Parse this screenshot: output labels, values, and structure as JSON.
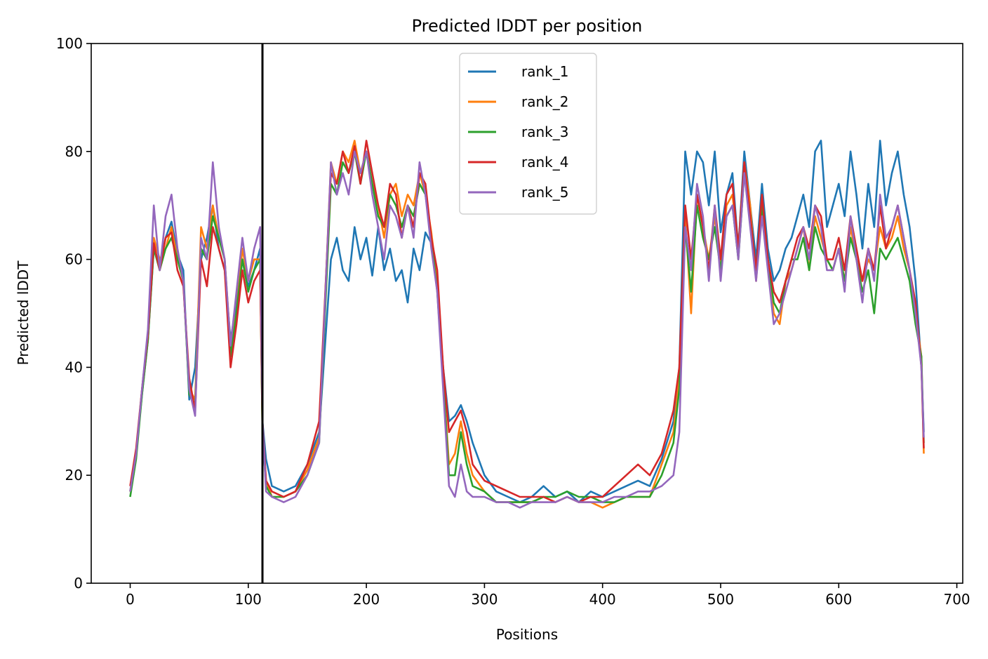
{
  "chart_data": {
    "type": "line",
    "title": "Predicted lDDT per position",
    "xlabel": "Positions",
    "ylabel": "Predicted lDDT",
    "xlim": [
      -33,
      705
    ],
    "ylim": [
      0,
      100
    ],
    "xticks": [
      0,
      100,
      200,
      300,
      400,
      500,
      600,
      700
    ],
    "yticks": [
      0,
      20,
      40,
      60,
      80,
      100
    ],
    "grid": false,
    "legend": "upper center",
    "vline_x": 112,
    "vline_color": "#000000",
    "series": [
      {
        "name": "rank_1",
        "color": "#1f77b4",
        "x": [
          0,
          5,
          10,
          15,
          20,
          25,
          30,
          35,
          40,
          45,
          50,
          55,
          60,
          65,
          70,
          75,
          80,
          85,
          90,
          95,
          100,
          105,
          110,
          112,
          115,
          120,
          130,
          140,
          150,
          160,
          170,
          175,
          180,
          185,
          190,
          195,
          200,
          205,
          210,
          215,
          220,
          225,
          230,
          235,
          240,
          245,
          250,
          255,
          260,
          265,
          270,
          275,
          280,
          285,
          290,
          300,
          310,
          320,
          330,
          340,
          350,
          360,
          370,
          380,
          390,
          400,
          410,
          420,
          430,
          440,
          450,
          460,
          465,
          470,
          475,
          480,
          485,
          490,
          495,
          500,
          505,
          510,
          515,
          520,
          525,
          530,
          535,
          540,
          545,
          550,
          555,
          560,
          565,
          570,
          575,
          580,
          585,
          590,
          595,
          600,
          605,
          610,
          615,
          620,
          625,
          630,
          635,
          640,
          645,
          650,
          655,
          660,
          665,
          670,
          672
        ],
        "y": [
          17,
          24,
          35,
          45,
          62,
          59,
          64,
          67,
          61,
          58,
          34,
          40,
          60,
          64,
          70,
          62,
          58,
          45,
          52,
          60,
          55,
          58,
          62,
          30,
          23,
          18,
          17,
          18,
          22,
          28,
          60,
          64,
          58,
          56,
          66,
          60,
          64,
          57,
          66,
          58,
          62,
          56,
          58,
          52,
          62,
          58,
          65,
          63,
          55,
          40,
          30,
          31,
          33,
          30,
          26,
          20,
          17,
          16,
          15,
          16,
          18,
          16,
          17,
          15,
          17,
          16,
          17,
          18,
          19,
          18,
          23,
          30,
          40,
          80,
          72,
          80,
          78,
          70,
          80,
          65,
          72,
          76,
          62,
          80,
          70,
          60,
          74,
          62,
          56,
          58,
          62,
          64,
          68,
          72,
          66,
          80,
          82,
          66,
          70,
          74,
          68,
          80,
          72,
          62,
          74,
          66,
          82,
          70,
          76,
          80,
          72,
          66,
          56,
          40,
          28
        ]
      },
      {
        "name": "rank_2",
        "color": "#ff7f0e",
        "x": [
          0,
          5,
          10,
          15,
          20,
          25,
          30,
          35,
          40,
          45,
          50,
          55,
          60,
          65,
          70,
          75,
          80,
          85,
          90,
          95,
          100,
          105,
          110,
          112,
          115,
          120,
          130,
          140,
          150,
          160,
          170,
          175,
          180,
          185,
          190,
          195,
          200,
          205,
          210,
          215,
          220,
          225,
          230,
          235,
          240,
          245,
          250,
          255,
          260,
          265,
          270,
          275,
          280,
          285,
          290,
          300,
          310,
          320,
          330,
          340,
          350,
          360,
          370,
          380,
          390,
          400,
          410,
          420,
          430,
          440,
          450,
          460,
          465,
          470,
          475,
          480,
          485,
          490,
          495,
          500,
          505,
          510,
          515,
          520,
          525,
          530,
          535,
          540,
          545,
          550,
          555,
          560,
          565,
          570,
          575,
          580,
          585,
          590,
          595,
          600,
          605,
          610,
          615,
          620,
          625,
          630,
          635,
          640,
          645,
          650,
          655,
          660,
          665,
          670,
          672
        ],
        "y": [
          17,
          24,
          36,
          46,
          64,
          60,
          62,
          66,
          60,
          56,
          36,
          34,
          66,
          62,
          70,
          64,
          60,
          44,
          50,
          62,
          56,
          60,
          60,
          28,
          19,
          16,
          16,
          17,
          21,
          27,
          78,
          74,
          80,
          78,
          82,
          76,
          80,
          74,
          70,
          64,
          72,
          74,
          68,
          72,
          70,
          76,
          72,
          65,
          56,
          38,
          22,
          24,
          30,
          24,
          20,
          17,
          15,
          15,
          15,
          15,
          16,
          15,
          16,
          15,
          15,
          14,
          15,
          16,
          16,
          16,
          22,
          28,
          38,
          68,
          50,
          72,
          66,
          60,
          68,
          58,
          70,
          72,
          62,
          78,
          70,
          56,
          70,
          60,
          50,
          48,
          56,
          58,
          62,
          66,
          58,
          68,
          64,
          60,
          58,
          62,
          56,
          66,
          60,
          56,
          60,
          58,
          66,
          62,
          64,
          68,
          62,
          58,
          50,
          42,
          24
        ]
      },
      {
        "name": "rank_3",
        "color": "#2ca02c",
        "x": [
          0,
          5,
          10,
          15,
          20,
          25,
          30,
          35,
          40,
          45,
          50,
          55,
          60,
          65,
          70,
          75,
          80,
          85,
          90,
          95,
          100,
          105,
          110,
          112,
          115,
          120,
          130,
          140,
          150,
          160,
          170,
          175,
          180,
          185,
          190,
          195,
          200,
          205,
          210,
          215,
          220,
          225,
          230,
          235,
          240,
          245,
          250,
          255,
          260,
          265,
          270,
          275,
          280,
          285,
          290,
          300,
          310,
          320,
          330,
          340,
          350,
          360,
          370,
          380,
          390,
          400,
          410,
          420,
          430,
          440,
          450,
          460,
          465,
          470,
          475,
          480,
          485,
          490,
          495,
          500,
          505,
          510,
          515,
          520,
          525,
          530,
          535,
          540,
          545,
          550,
          555,
          560,
          565,
          570,
          575,
          580,
          585,
          590,
          595,
          600,
          605,
          610,
          615,
          620,
          625,
          630,
          635,
          640,
          645,
          650,
          655,
          660,
          665,
          670,
          672
        ],
        "y": [
          16,
          23,
          35,
          45,
          62,
          58,
          62,
          64,
          60,
          56,
          35,
          33,
          62,
          60,
          68,
          64,
          60,
          42,
          50,
          60,
          54,
          58,
          60,
          28,
          18,
          16,
          16,
          17,
          20,
          26,
          74,
          72,
          78,
          76,
          80,
          74,
          80,
          74,
          68,
          66,
          72,
          70,
          66,
          70,
          68,
          74,
          72,
          64,
          54,
          38,
          20,
          20,
          28,
          22,
          18,
          17,
          15,
          15,
          15,
          15,
          16,
          16,
          17,
          16,
          16,
          15,
          15,
          16,
          16,
          16,
          20,
          26,
          36,
          66,
          54,
          70,
          64,
          60,
          66,
          58,
          68,
          70,
          60,
          76,
          68,
          58,
          70,
          60,
          52,
          50,
          56,
          60,
          60,
          64,
          58,
          66,
          62,
          60,
          58,
          62,
          56,
          64,
          60,
          54,
          58,
          50,
          62,
          60,
          62,
          64,
          60,
          56,
          48,
          42,
          26
        ]
      },
      {
        "name": "rank_4",
        "color": "#d62728",
        "x": [
          0,
          5,
          10,
          15,
          20,
          25,
          30,
          35,
          40,
          45,
          50,
          55,
          60,
          65,
          70,
          75,
          80,
          85,
          90,
          95,
          100,
          105,
          110,
          112,
          115,
          120,
          130,
          140,
          150,
          160,
          170,
          175,
          180,
          185,
          190,
          195,
          200,
          205,
          210,
          215,
          220,
          225,
          230,
          235,
          240,
          245,
          250,
          255,
          260,
          265,
          270,
          275,
          280,
          285,
          290,
          300,
          310,
          320,
          330,
          340,
          350,
          360,
          370,
          380,
          390,
          400,
          410,
          420,
          430,
          440,
          450,
          460,
          465,
          470,
          475,
          480,
          485,
          490,
          495,
          500,
          505,
          510,
          515,
          520,
          525,
          530,
          535,
          540,
          545,
          550,
          555,
          560,
          565,
          570,
          575,
          580,
          585,
          590,
          595,
          600,
          605,
          610,
          615,
          620,
          625,
          630,
          635,
          640,
          645,
          650,
          655,
          660,
          665,
          670,
          672
        ],
        "y": [
          18,
          25,
          36,
          46,
          63,
          58,
          64,
          65,
          58,
          55,
          38,
          32,
          60,
          55,
          66,
          62,
          58,
          40,
          48,
          58,
          52,
          56,
          58,
          30,
          19,
          17,
          16,
          17,
          22,
          30,
          76,
          74,
          80,
          76,
          81,
          74,
          82,
          76,
          70,
          66,
          74,
          72,
          64,
          70,
          66,
          76,
          74,
          64,
          58,
          40,
          28,
          30,
          32,
          28,
          22,
          19,
          18,
          17,
          16,
          16,
          16,
          15,
          16,
          15,
          16,
          16,
          18,
          20,
          22,
          20,
          24,
          32,
          40,
          70,
          60,
          72,
          66,
          58,
          70,
          60,
          72,
          74,
          62,
          78,
          68,
          58,
          72,
          60,
          54,
          52,
          56,
          60,
          64,
          66,
          62,
          70,
          68,
          60,
          60,
          64,
          58,
          68,
          62,
          56,
          62,
          58,
          70,
          62,
          66,
          70,
          64,
          58,
          52,
          40,
          25
        ]
      },
      {
        "name": "rank_5",
        "color": "#9467bd",
        "x": [
          0,
          5,
          10,
          15,
          20,
          25,
          30,
          35,
          40,
          45,
          50,
          55,
          60,
          65,
          70,
          75,
          80,
          85,
          90,
          95,
          100,
          105,
          110,
          112,
          115,
          120,
          130,
          140,
          150,
          160,
          170,
          175,
          180,
          185,
          190,
          195,
          200,
          205,
          210,
          215,
          220,
          225,
          230,
          235,
          240,
          245,
          250,
          255,
          260,
          265,
          270,
          275,
          280,
          285,
          290,
          300,
          310,
          320,
          330,
          340,
          350,
          360,
          370,
          380,
          390,
          400,
          410,
          420,
          430,
          440,
          450,
          460,
          465,
          470,
          475,
          480,
          485,
          490,
          495,
          500,
          505,
          510,
          515,
          520,
          525,
          530,
          535,
          540,
          545,
          550,
          555,
          560,
          565,
          570,
          575,
          580,
          585,
          590,
          595,
          600,
          605,
          610,
          615,
          620,
          625,
          630,
          635,
          640,
          645,
          650,
          655,
          660,
          665,
          670,
          672
        ],
        "y": [
          17,
          24,
          36,
          47,
          70,
          58,
          68,
          72,
          62,
          56,
          36,
          31,
          64,
          60,
          78,
          66,
          60,
          44,
          54,
          64,
          56,
          62,
          66,
          30,
          17,
          16,
          15,
          16,
          20,
          26,
          78,
          72,
          76,
          72,
          80,
          76,
          80,
          72,
          66,
          60,
          70,
          68,
          64,
          70,
          64,
          78,
          72,
          62,
          54,
          36,
          18,
          16,
          22,
          17,
          16,
          16,
          15,
          15,
          14,
          15,
          15,
          15,
          16,
          15,
          15,
          15,
          16,
          16,
          17,
          17,
          18,
          20,
          28,
          66,
          58,
          74,
          68,
          56,
          70,
          56,
          68,
          70,
          60,
          76,
          66,
          56,
          68,
          58,
          48,
          50,
          54,
          58,
          62,
          66,
          60,
          70,
          66,
          58,
          58,
          62,
          54,
          68,
          60,
          52,
          62,
          56,
          72,
          64,
          66,
          70,
          64,
          58,
          50,
          40,
          27
        ]
      }
    ]
  }
}
